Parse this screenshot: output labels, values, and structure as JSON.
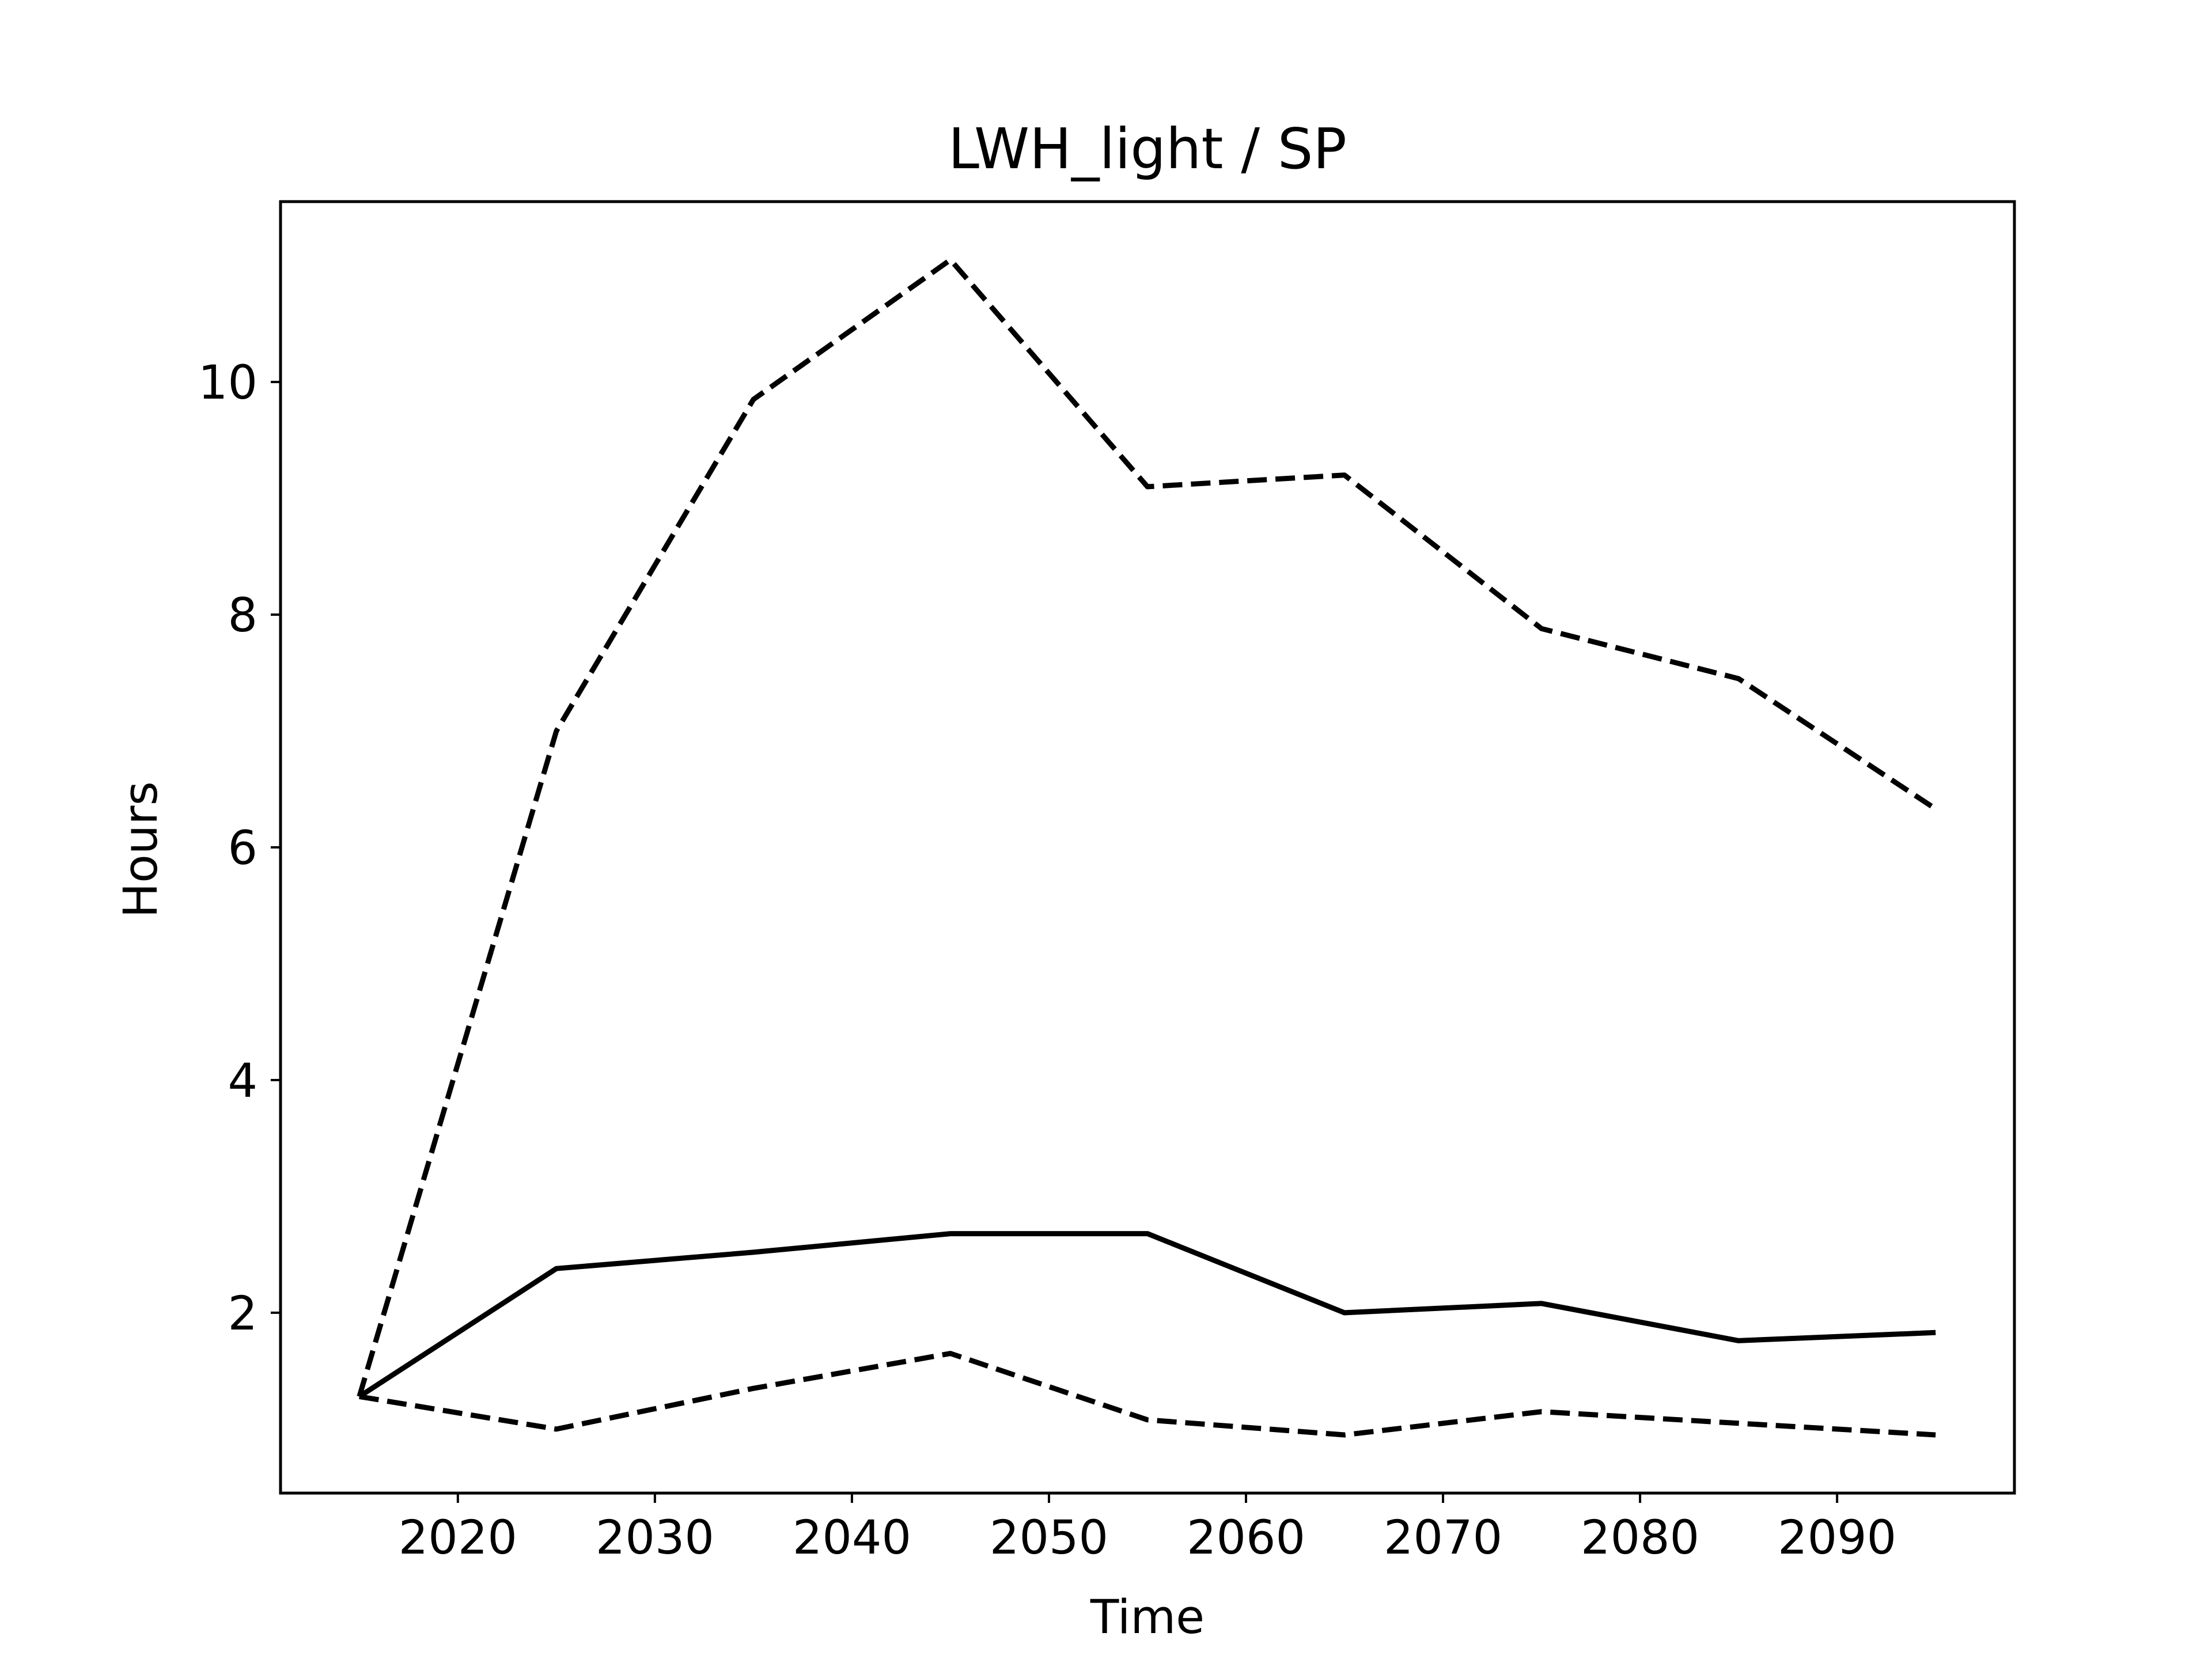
{
  "chart_data": {
    "type": "line",
    "title": "LWH_light / SP",
    "xlabel": "Time",
    "ylabel": "Hours",
    "xlim": [
      2011,
      2099
    ],
    "ylim": [
      0.45,
      11.55
    ],
    "xticks": [
      2020,
      2030,
      2040,
      2050,
      2060,
      2070,
      2080,
      2090
    ],
    "yticks": [
      2,
      4,
      6,
      8,
      10
    ],
    "grid": false,
    "x": [
      2015,
      2025,
      2035,
      2045,
      2055,
      2065,
      2075,
      2085,
      2095
    ],
    "series": [
      {
        "style": "solid",
        "color": "#000000",
        "values": [
          1.28,
          2.38,
          2.52,
          2.68,
          2.68,
          2.0,
          2.08,
          1.76,
          1.83
        ]
      },
      {
        "style": "dashed",
        "color": "#000000",
        "values": [
          1.28,
          7.0,
          9.85,
          11.05,
          9.1,
          9.2,
          7.88,
          7.45,
          6.33
        ]
      },
      {
        "style": "dashed",
        "color": "#000000",
        "values": [
          1.28,
          1.0,
          1.35,
          1.65,
          1.08,
          0.95,
          1.15,
          1.05,
          0.95
        ]
      }
    ]
  }
}
